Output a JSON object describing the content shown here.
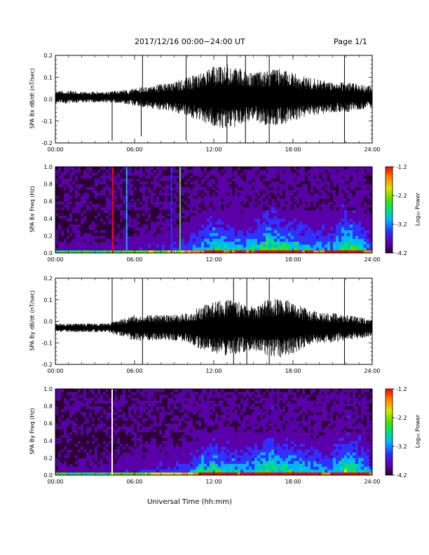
{
  "header": {
    "title": "2017/12/16  00:00−24:00 UT",
    "page": "Page 1/1"
  },
  "footer": {
    "xlabel": "Universal Time (hh:mm)"
  },
  "colorbar": {
    "label": "Log₁₀ Power",
    "ticks": [
      "-1.2",
      "-2.2",
      "-3.2",
      "-4.2"
    ],
    "range": [
      -4.2,
      -1.2
    ],
    "colors": [
      "#2b0033",
      "#5a00a8",
      "#3030ff",
      "#00b4ff",
      "#00e07a",
      "#4ee000",
      "#e0e000",
      "#ff8000",
      "#ff0000"
    ]
  },
  "chart_data": [
    {
      "type": "line",
      "ylabel": "SPA Bx dB/dt (nT/sec)",
      "xlim": [
        0,
        24
      ],
      "ylim": [
        -0.2,
        0.2
      ],
      "x_ticks": [
        "00:00",
        "06:00",
        "12:00",
        "18:00",
        "24:00"
      ],
      "y_ticks": [
        "0.2",
        "0.1",
        "0.0",
        "-0.1",
        "-0.2"
      ],
      "envelope": {
        "x_hours": [
          0,
          1,
          2,
          3,
          4,
          5,
          6,
          7,
          8,
          9,
          10,
          11,
          12,
          13,
          14,
          15,
          16,
          17,
          18,
          19,
          20,
          21,
          22,
          23,
          24
        ],
        "amplitude": [
          0.03,
          0.03,
          0.025,
          0.025,
          0.025,
          0.03,
          0.04,
          0.05,
          0.06,
          0.07,
          0.09,
          0.11,
          0.14,
          0.15,
          0.13,
          0.11,
          0.13,
          0.13,
          0.11,
          0.09,
          0.08,
          0.07,
          0.07,
          0.06,
          0.05
        ],
        "offset": 0.01
      },
      "spikes": [
        {
          "x": 4.3,
          "min": -0.19,
          "max": 0.0
        },
        {
          "x": 6.5,
          "min": -0.17,
          "max": 0.03
        },
        {
          "x": 6.6,
          "min": 0.0,
          "max": 0.21
        },
        {
          "x": 9.9,
          "min": -0.19,
          "max": 0.21
        },
        {
          "x": 13.0,
          "min": -0.2,
          "max": 0.2
        },
        {
          "x": 14.4,
          "min": -0.2,
          "max": 0.2
        },
        {
          "x": 16.2,
          "min": -0.2,
          "max": 0.2
        },
        {
          "x": 21.9,
          "min": -0.2,
          "max": 0.21
        }
      ]
    },
    {
      "type": "heatmap",
      "ylabel": "SPA Bx Freq (Hz)",
      "xlim": [
        0,
        24
      ],
      "ylim": [
        0.0,
        1.0
      ],
      "x_ticks": [
        "00:00",
        "06:00",
        "12:00",
        "18:00",
        "24:00"
      ],
      "y_ticks": [
        "1.0",
        "0.8",
        "0.6",
        "0.4",
        "0.2",
        "0.0"
      ],
      "zlim": [
        -4.2,
        -1.2
      ],
      "activity": {
        "x_hours": [
          0,
          2,
          4,
          6,
          8,
          10,
          11,
          12,
          13,
          14,
          15,
          16,
          17,
          18,
          19,
          20,
          21,
          22,
          23,
          24
        ],
        "level": [
          0.1,
          0.1,
          0.1,
          0.15,
          0.2,
          0.3,
          0.45,
          0.6,
          0.5,
          0.45,
          0.5,
          0.7,
          0.6,
          0.55,
          0.5,
          0.45,
          0.45,
          0.7,
          0.6,
          0.3
        ]
      },
      "vertical_lines": [
        {
          "x": 4.35,
          "value": -1.2
        },
        {
          "x": 5.4,
          "value": -2.9
        },
        {
          "x": 9.45,
          "value": -2.4
        },
        {
          "x": 8.8,
          "value": -3.4
        }
      ]
    },
    {
      "type": "line",
      "ylabel": "SPA By dB/dt (nT/sec)",
      "xlim": [
        0,
        24
      ],
      "ylim": [
        -0.2,
        0.2
      ],
      "x_ticks": [
        "00:00",
        "06:00",
        "12:00",
        "18:00",
        "24:00"
      ],
      "y_ticks": [
        "0.2",
        "0.1",
        "0.0",
        "-0.1",
        "-0.2"
      ],
      "envelope": {
        "x_hours": [
          0,
          1,
          2,
          3,
          4,
          5,
          6,
          7,
          8,
          9,
          10,
          11,
          12,
          13,
          14,
          15,
          16,
          17,
          18,
          19,
          20,
          21,
          22,
          23,
          24
        ],
        "amplitude": [
          0.02,
          0.02,
          0.02,
          0.02,
          0.02,
          0.04,
          0.06,
          0.06,
          0.06,
          0.06,
          0.07,
          0.1,
          0.12,
          0.13,
          0.12,
          0.1,
          0.13,
          0.14,
          0.12,
          0.09,
          0.07,
          0.07,
          0.06,
          0.05,
          0.04
        ],
        "offset": -0.03
      },
      "spikes": [
        {
          "x": 4.3,
          "min": -0.02,
          "max": 0.21
        },
        {
          "x": 6.6,
          "min": -0.2,
          "max": 0.21
        },
        {
          "x": 13.5,
          "min": -0.2,
          "max": 0.2
        },
        {
          "x": 14.5,
          "min": -0.2,
          "max": 0.2
        },
        {
          "x": 16.2,
          "min": -0.2,
          "max": 0.2
        },
        {
          "x": 21.9,
          "min": -0.2,
          "max": 0.21
        }
      ]
    },
    {
      "type": "heatmap",
      "ylabel": "SPA By Freq (Hz)",
      "xlim": [
        0,
        24
      ],
      "ylim": [
        0.0,
        1.0
      ],
      "x_ticks": [
        "00:00",
        "06:00",
        "12:00",
        "18:00",
        "24:00"
      ],
      "y_ticks": [
        "1.0",
        "0.8",
        "0.6",
        "0.4",
        "0.2",
        "0.0"
      ],
      "zlim": [
        -4.2,
        -1.2
      ],
      "activity": {
        "x_hours": [
          0,
          2,
          4,
          6,
          8,
          10,
          11,
          12,
          13,
          14,
          15,
          16,
          17,
          18,
          19,
          20,
          21,
          22,
          23,
          24
        ],
        "level": [
          0.1,
          0.1,
          0.1,
          0.2,
          0.25,
          0.3,
          0.5,
          0.6,
          0.5,
          0.45,
          0.5,
          0.65,
          0.6,
          0.55,
          0.5,
          0.45,
          0.45,
          0.65,
          0.6,
          0.3
        ]
      },
      "vertical_lines": [
        {
          "x": 4.3,
          "value": "white"
        }
      ]
    }
  ]
}
